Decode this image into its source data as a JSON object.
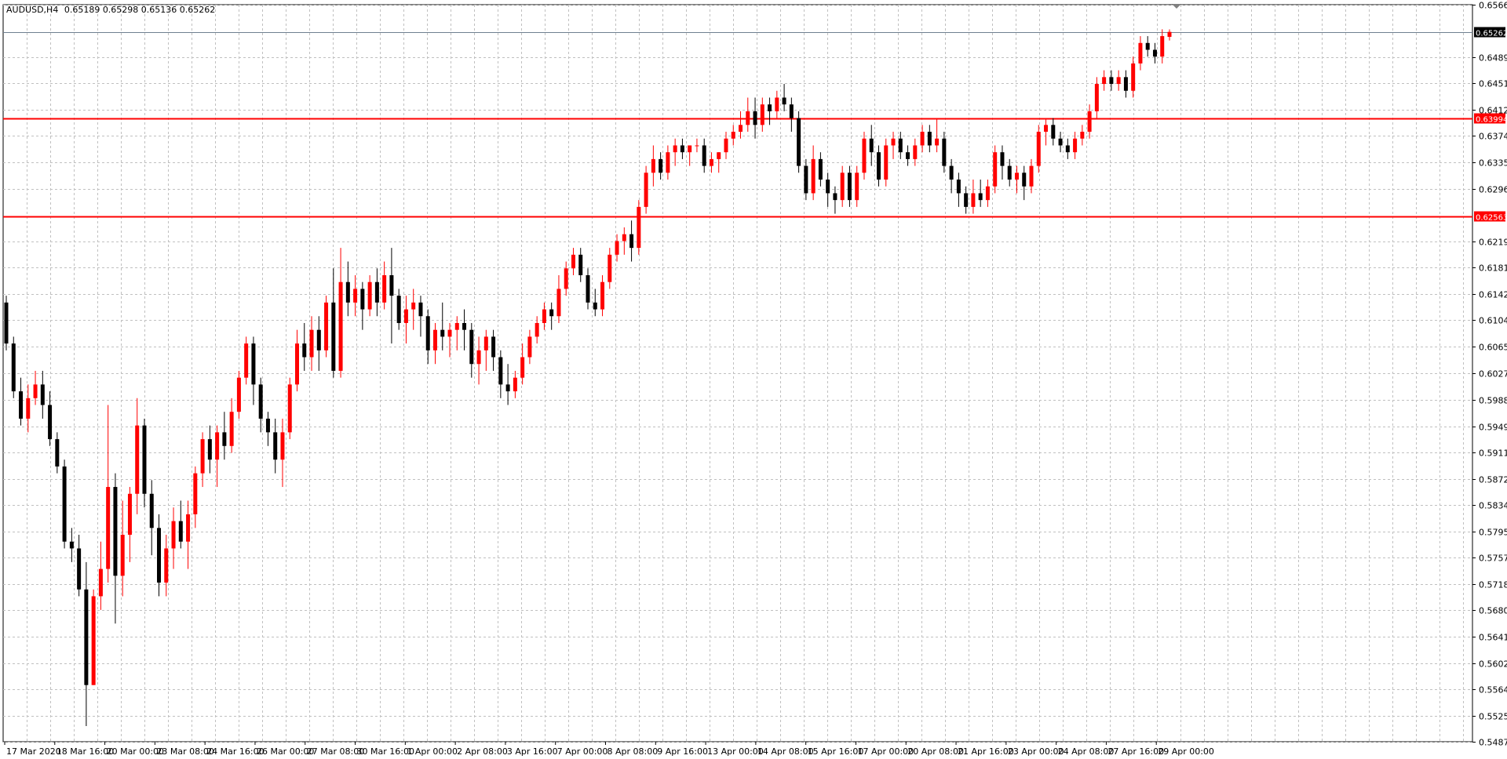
{
  "header": {
    "symbol_tf": "AUDUSD,H4",
    "ohlc": "0.65189 0.65298 0.65136 0.65262"
  },
  "chart_data": {
    "type": "candlestick",
    "title": "AUDUSD,H4 0.65189 0.65298 0.65136 0.65262",
    "ylim": [
      0.5487,
      0.6566
    ],
    "y_ticks": [
      "0.65660",
      "0.65262",
      "0.64890",
      "0.64510",
      "0.64120",
      "0.63994",
      "0.63740",
      "0.63350",
      "0.62960",
      "0.62563",
      "0.62190",
      "0.61810",
      "0.61420",
      "0.61040",
      "0.60650",
      "0.60270",
      "0.59880",
      "0.59490",
      "0.59110",
      "0.58720",
      "0.58340",
      "0.57950",
      "0.57570",
      "0.57180",
      "0.56800",
      "0.56410",
      "0.56020",
      "0.55640",
      "0.55250",
      "0.54870"
    ],
    "x_ticks": [
      "17 Mar 2020",
      "18 Mar 16:00",
      "20 Mar 00:00",
      "23 Mar 08:00",
      "24 Mar 16:00",
      "26 Mar 00:00",
      "27 Mar 08:00",
      "30 Mar 16:00",
      "1 Apr 00:00",
      "2 Apr 08:00",
      "3 Apr 16:00",
      "7 Apr 00:00",
      "8 Apr 08:00",
      "9 Apr 16:00",
      "13 Apr 00:00",
      "14 Apr 08:00",
      "15 Apr 16:00",
      "17 Apr 00:00",
      "20 Apr 08:00",
      "21 Apr 16:00",
      "23 Apr 00:00",
      "24 Apr 08:00",
      "27 Apr 16:00",
      "29 Apr 00:00"
    ],
    "current_price": {
      "value": 0.65262,
      "label": "0.65262"
    },
    "levels": [
      {
        "value": 0.63994,
        "label": "0.63994",
        "color": "#ff0000"
      },
      {
        "value": 0.62563,
        "label": "0.62563",
        "color": "#ff0000"
      }
    ],
    "colors": {
      "bull": "#ff0000",
      "bear": "#000000",
      "grid": "#c0c0c0",
      "background": "#ffffff"
    },
    "grid": true,
    "candles": [
      [
        0.613,
        0.614,
        0.606,
        0.607
      ],
      [
        0.607,
        0.608,
        0.599,
        0.6
      ],
      [
        0.6,
        0.602,
        0.595,
        0.596
      ],
      [
        0.596,
        0.601,
        0.594,
        0.599
      ],
      [
        0.599,
        0.603,
        0.598,
        0.601
      ],
      [
        0.601,
        0.603,
        0.596,
        0.598
      ],
      [
        0.598,
        0.6,
        0.592,
        0.593
      ],
      [
        0.593,
        0.594,
        0.588,
        0.589
      ],
      [
        0.589,
        0.59,
        0.577,
        0.578
      ],
      [
        0.578,
        0.58,
        0.575,
        0.577
      ],
      [
        0.577,
        0.579,
        0.57,
        0.571
      ],
      [
        0.571,
        0.575,
        0.551,
        0.557
      ],
      [
        0.557,
        0.571,
        0.557,
        0.57
      ],
      [
        0.57,
        0.578,
        0.568,
        0.574
      ],
      [
        0.574,
        0.598,
        0.572,
        0.586
      ],
      [
        0.586,
        0.588,
        0.566,
        0.573
      ],
      [
        0.573,
        0.584,
        0.57,
        0.579
      ],
      [
        0.579,
        0.586,
        0.575,
        0.585
      ],
      [
        0.585,
        0.599,
        0.582,
        0.595
      ],
      [
        0.595,
        0.596,
        0.583,
        0.585
      ],
      [
        0.585,
        0.587,
        0.576,
        0.58
      ],
      [
        0.58,
        0.582,
        0.57,
        0.572
      ],
      [
        0.572,
        0.579,
        0.57,
        0.577
      ],
      [
        0.577,
        0.583,
        0.574,
        0.581
      ],
      [
        0.581,
        0.584,
        0.577,
        0.578
      ],
      [
        0.578,
        0.584,
        0.574,
        0.582
      ],
      [
        0.582,
        0.589,
        0.58,
        0.588
      ],
      [
        0.588,
        0.594,
        0.586,
        0.593
      ],
      [
        0.593,
        0.595,
        0.588,
        0.59
      ],
      [
        0.59,
        0.595,
        0.586,
        0.594
      ],
      [
        0.594,
        0.597,
        0.59,
        0.592
      ],
      [
        0.592,
        0.599,
        0.591,
        0.597
      ],
      [
        0.597,
        0.603,
        0.596,
        0.602
      ],
      [
        0.602,
        0.608,
        0.601,
        0.607
      ],
      [
        0.607,
        0.608,
        0.598,
        0.601
      ],
      [
        0.601,
        0.602,
        0.594,
        0.596
      ],
      [
        0.596,
        0.597,
        0.592,
        0.594
      ],
      [
        0.594,
        0.596,
        0.588,
        0.59
      ],
      [
        0.59,
        0.596,
        0.586,
        0.594
      ],
      [
        0.594,
        0.602,
        0.593,
        0.601
      ],
      [
        0.601,
        0.609,
        0.6,
        0.607
      ],
      [
        0.607,
        0.61,
        0.603,
        0.605
      ],
      [
        0.605,
        0.611,
        0.603,
        0.609
      ],
      [
        0.609,
        0.611,
        0.603,
        0.606
      ],
      [
        0.606,
        0.614,
        0.605,
        0.613
      ],
      [
        0.613,
        0.618,
        0.602,
        0.603
      ],
      [
        0.603,
        0.621,
        0.602,
        0.616
      ],
      [
        0.616,
        0.619,
        0.611,
        0.613
      ],
      [
        0.613,
        0.617,
        0.611,
        0.615
      ],
      [
        0.615,
        0.616,
        0.609,
        0.612
      ],
      [
        0.612,
        0.617,
        0.611,
        0.616
      ],
      [
        0.616,
        0.618,
        0.611,
        0.613
      ],
      [
        0.613,
        0.619,
        0.612,
        0.617
      ],
      [
        0.617,
        0.621,
        0.607,
        0.614
      ],
      [
        0.614,
        0.615,
        0.609,
        0.61
      ],
      [
        0.61,
        0.614,
        0.607,
        0.612
      ],
      [
        0.612,
        0.615,
        0.609,
        0.613
      ],
      [
        0.613,
        0.614,
        0.608,
        0.611
      ],
      [
        0.611,
        0.612,
        0.604,
        0.606
      ],
      [
        0.606,
        0.61,
        0.604,
        0.609
      ],
      [
        0.609,
        0.613,
        0.606,
        0.608
      ],
      [
        0.608,
        0.61,
        0.605,
        0.609
      ],
      [
        0.609,
        0.611,
        0.606,
        0.61
      ],
      [
        0.61,
        0.612,
        0.606,
        0.609
      ],
      [
        0.609,
        0.61,
        0.602,
        0.604
      ],
      [
        0.604,
        0.608,
        0.601,
        0.606
      ],
      [
        0.606,
        0.609,
        0.603,
        0.608
      ],
      [
        0.608,
        0.609,
        0.603,
        0.605
      ],
      [
        0.605,
        0.606,
        0.599,
        0.601
      ],
      [
        0.601,
        0.604,
        0.598,
        0.6
      ],
      [
        0.6,
        0.603,
        0.599,
        0.602
      ],
      [
        0.602,
        0.607,
        0.601,
        0.605
      ],
      [
        0.605,
        0.609,
        0.604,
        0.608
      ],
      [
        0.608,
        0.611,
        0.607,
        0.61
      ],
      [
        0.61,
        0.613,
        0.609,
        0.612
      ],
      [
        0.612,
        0.613,
        0.609,
        0.611
      ],
      [
        0.611,
        0.617,
        0.61,
        0.615
      ],
      [
        0.615,
        0.619,
        0.614,
        0.618
      ],
      [
        0.618,
        0.621,
        0.617,
        0.62
      ],
      [
        0.62,
        0.621,
        0.616,
        0.617
      ],
      [
        0.617,
        0.618,
        0.612,
        0.613
      ],
      [
        0.613,
        0.615,
        0.611,
        0.612
      ],
      [
        0.612,
        0.617,
        0.611,
        0.616
      ],
      [
        0.616,
        0.621,
        0.615,
        0.62
      ],
      [
        0.62,
        0.623,
        0.619,
        0.622
      ],
      [
        0.622,
        0.624,
        0.62,
        0.623
      ],
      [
        0.623,
        0.625,
        0.619,
        0.621
      ],
      [
        0.621,
        0.628,
        0.62,
        0.627
      ],
      [
        0.627,
        0.633,
        0.626,
        0.632
      ],
      [
        0.632,
        0.636,
        0.63,
        0.634
      ],
      [
        0.634,
        0.635,
        0.631,
        0.632
      ],
      [
        0.632,
        0.636,
        0.631,
        0.635
      ],
      [
        0.635,
        0.637,
        0.633,
        0.636
      ],
      [
        0.636,
        0.637,
        0.634,
        0.635
      ],
      [
        0.635,
        0.636,
        0.633,
        0.636
      ],
      [
        0.636,
        0.637,
        0.635,
        0.636
      ],
      [
        0.636,
        0.637,
        0.632,
        0.633
      ],
      [
        0.633,
        0.635,
        0.632,
        0.634
      ],
      [
        0.634,
        0.635,
        0.632,
        0.635
      ],
      [
        0.635,
        0.638,
        0.634,
        0.637
      ],
      [
        0.637,
        0.639,
        0.636,
        0.638
      ],
      [
        0.638,
        0.641,
        0.637,
        0.639
      ],
      [
        0.639,
        0.643,
        0.638,
        0.641
      ],
      [
        0.641,
        0.643,
        0.637,
        0.639
      ],
      [
        0.639,
        0.643,
        0.638,
        0.642
      ],
      [
        0.642,
        0.643,
        0.639,
        0.641
      ],
      [
        0.641,
        0.644,
        0.64,
        0.643
      ],
      [
        0.643,
        0.645,
        0.641,
        0.642
      ],
      [
        0.642,
        0.643,
        0.638,
        0.64
      ],
      [
        0.64,
        0.641,
        0.632,
        0.633
      ],
      [
        0.633,
        0.634,
        0.628,
        0.629
      ],
      [
        0.629,
        0.636,
        0.628,
        0.634
      ],
      [
        0.634,
        0.635,
        0.63,
        0.631
      ],
      [
        0.631,
        0.632,
        0.627,
        0.629
      ],
      [
        0.629,
        0.63,
        0.626,
        0.628
      ],
      [
        0.628,
        0.633,
        0.627,
        0.632
      ],
      [
        0.632,
        0.633,
        0.627,
        0.628
      ],
      [
        0.628,
        0.633,
        0.627,
        0.632
      ],
      [
        0.632,
        0.638,
        0.631,
        0.637
      ],
      [
        0.637,
        0.639,
        0.633,
        0.635
      ],
      [
        0.635,
        0.636,
        0.63,
        0.631
      ],
      [
        0.631,
        0.637,
        0.63,
        0.636
      ],
      [
        0.636,
        0.638,
        0.634,
        0.637
      ],
      [
        0.637,
        0.638,
        0.634,
        0.635
      ],
      [
        0.635,
        0.636,
        0.633,
        0.634
      ],
      [
        0.634,
        0.637,
        0.633,
        0.636
      ],
      [
        0.636,
        0.639,
        0.635,
        0.638
      ],
      [
        0.638,
        0.639,
        0.635,
        0.636
      ],
      [
        0.636,
        0.64,
        0.635,
        0.637
      ],
      [
        0.637,
        0.638,
        0.632,
        0.633
      ],
      [
        0.633,
        0.634,
        0.629,
        0.631
      ],
      [
        0.631,
        0.632,
        0.627,
        0.629
      ],
      [
        0.629,
        0.63,
        0.626,
        0.627
      ],
      [
        0.627,
        0.631,
        0.626,
        0.629
      ],
      [
        0.629,
        0.631,
        0.627,
        0.628
      ],
      [
        0.628,
        0.631,
        0.627,
        0.63
      ],
      [
        0.63,
        0.636,
        0.629,
        0.635
      ],
      [
        0.635,
        0.636,
        0.631,
        0.633
      ],
      [
        0.633,
        0.634,
        0.63,
        0.631
      ],
      [
        0.631,
        0.633,
        0.629,
        0.632
      ],
      [
        0.632,
        0.633,
        0.628,
        0.63
      ],
      [
        0.63,
        0.634,
        0.629,
        0.633
      ],
      [
        0.633,
        0.639,
        0.632,
        0.638
      ],
      [
        0.638,
        0.64,
        0.636,
        0.639
      ],
      [
        0.639,
        0.64,
        0.636,
        0.637
      ],
      [
        0.637,
        0.638,
        0.635,
        0.636
      ],
      [
        0.636,
        0.637,
        0.634,
        0.635
      ],
      [
        0.635,
        0.638,
        0.634,
        0.637
      ],
      [
        0.637,
        0.639,
        0.636,
        0.638
      ],
      [
        0.638,
        0.642,
        0.637,
        0.641
      ],
      [
        0.641,
        0.646,
        0.64,
        0.645
      ],
      [
        0.645,
        0.647,
        0.644,
        0.646
      ],
      [
        0.646,
        0.647,
        0.644,
        0.645
      ],
      [
        0.645,
        0.647,
        0.644,
        0.646
      ],
      [
        0.646,
        0.647,
        0.643,
        0.644
      ],
      [
        0.644,
        0.649,
        0.643,
        0.648
      ],
      [
        0.648,
        0.652,
        0.647,
        0.651
      ],
      [
        0.651,
        0.652,
        0.649,
        0.65
      ],
      [
        0.65,
        0.651,
        0.648,
        0.649
      ],
      [
        0.649,
        0.653,
        0.648,
        0.652
      ],
      [
        0.65189,
        0.65298,
        0.65136,
        0.65262
      ]
    ]
  }
}
